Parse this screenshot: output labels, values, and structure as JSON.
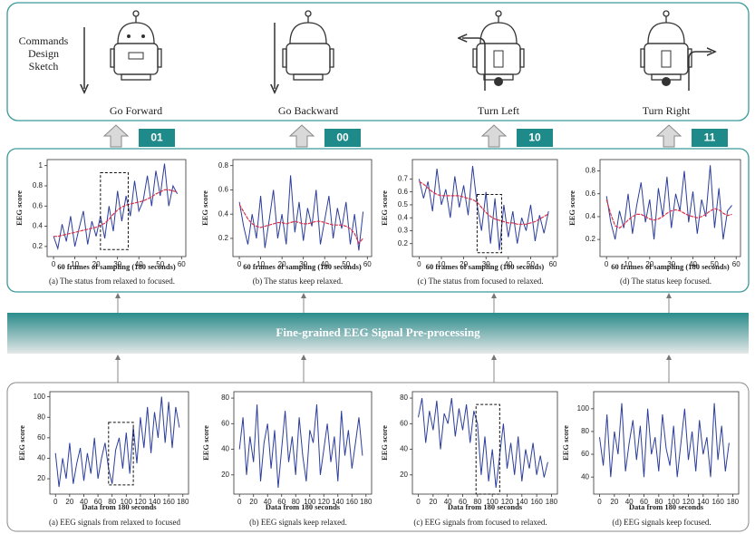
{
  "sketch": {
    "title_lines": [
      "Commands",
      "Design",
      "Sketch"
    ],
    "commands": [
      {
        "label": "Go Forward",
        "code": "01"
      },
      {
        "label": "Go Backward",
        "code": "00"
      },
      {
        "label": "Turn Left",
        "code": "10"
      },
      {
        "label": "Turn Right",
        "code": "11"
      }
    ]
  },
  "processing_label": "Fine-grained EEG Signal Pre-processing",
  "chart_data": [
    {
      "type": "line",
      "caption": "(a) The status from relaxed to focused.",
      "xlabel": "60 frames of sampling (180 seconds)",
      "ylabel": "EEG score",
      "x": [
        0,
        2,
        4,
        6,
        8,
        10,
        12,
        14,
        16,
        18,
        20,
        22,
        24,
        26,
        28,
        30,
        32,
        34,
        36,
        38,
        40,
        42,
        44,
        46,
        48,
        50,
        52,
        54,
        56,
        58
      ],
      "series": [
        {
          "color": "#2c3e9c",
          "values": [
            0.3,
            0.18,
            0.42,
            0.25,
            0.5,
            0.2,
            0.38,
            0.55,
            0.22,
            0.45,
            0.3,
            0.5,
            0.28,
            0.6,
            0.35,
            0.75,
            0.45,
            0.7,
            0.5,
            0.85,
            0.55,
            0.65,
            0.9,
            0.6,
            0.95,
            0.7,
            1.02,
            0.6,
            0.8,
            0.72
          ]
        },
        {
          "color": "#d8324a",
          "values": [
            0.3,
            0.3,
            0.31,
            0.32,
            0.33,
            0.34,
            0.35,
            0.36,
            0.37,
            0.38,
            0.39,
            0.41,
            0.43,
            0.47,
            0.52,
            0.56,
            0.59,
            0.61,
            0.62,
            0.63,
            0.64,
            0.65,
            0.67,
            0.69,
            0.72,
            0.74,
            0.76,
            0.76,
            0.75,
            0.74
          ]
        }
      ],
      "xlim": [
        -3,
        62
      ],
      "ylim": [
        0.1,
        1.06
      ],
      "xticks": [
        0,
        10,
        20,
        30,
        40,
        50,
        60
      ],
      "yticks": [
        0.2,
        0.4,
        0.6,
        0.8,
        1
      ],
      "highlight": {
        "x": [
          22,
          35
        ],
        "y": [
          0.17,
          0.93
        ]
      }
    },
    {
      "type": "line",
      "caption": "(b) The status keep relaxed.",
      "xlabel": "60 frames of sampling (180 seconds)",
      "ylabel": "EEG score",
      "x": [
        0,
        2,
        4,
        6,
        8,
        10,
        12,
        14,
        16,
        18,
        20,
        22,
        24,
        26,
        28,
        30,
        32,
        34,
        36,
        38,
        40,
        42,
        44,
        46,
        48,
        50,
        52,
        54,
        56,
        58
      ],
      "series": [
        {
          "color": "#2c3e9c",
          "values": [
            0.5,
            0.3,
            0.15,
            0.4,
            0.2,
            0.55,
            0.12,
            0.35,
            0.6,
            0.2,
            0.4,
            0.15,
            0.72,
            0.25,
            0.5,
            0.18,
            0.45,
            0.3,
            0.6,
            0.15,
            0.35,
            0.55,
            0.2,
            0.45,
            0.28,
            0.5,
            0.15,
            0.4,
            0.1,
            0.42
          ]
        },
        {
          "color": "#d8324a",
          "values": [
            0.48,
            0.42,
            0.36,
            0.32,
            0.3,
            0.29,
            0.3,
            0.31,
            0.32,
            0.33,
            0.33,
            0.32,
            0.33,
            0.34,
            0.33,
            0.32,
            0.32,
            0.33,
            0.34,
            0.34,
            0.33,
            0.32,
            0.31,
            0.31,
            0.31,
            0.3,
            0.28,
            0.24,
            0.16,
            0.2
          ]
        }
      ],
      "xlim": [
        -3,
        62
      ],
      "ylim": [
        0.05,
        0.85
      ],
      "xticks": [
        0,
        10,
        20,
        30,
        40,
        50,
        60
      ],
      "yticks": [
        0.2,
        0.4,
        0.6,
        0.8
      ]
    },
    {
      "type": "line",
      "caption": "(c) The status from focused to relaxed.",
      "xlabel": "60 frames of sampling (180 seconds)",
      "ylabel": "EEG score",
      "x": [
        0,
        2,
        4,
        6,
        8,
        10,
        12,
        14,
        16,
        18,
        20,
        22,
        24,
        26,
        28,
        30,
        32,
        34,
        36,
        38,
        40,
        42,
        44,
        46,
        48,
        50,
        52,
        54,
        56,
        58
      ],
      "series": [
        {
          "color": "#2c3e9c",
          "values": [
            0.7,
            0.55,
            0.68,
            0.45,
            0.78,
            0.5,
            0.62,
            0.4,
            0.72,
            0.48,
            0.65,
            0.42,
            0.8,
            0.5,
            0.3,
            0.6,
            0.2,
            0.55,
            0.15,
            0.5,
            0.25,
            0.45,
            0.2,
            0.4,
            0.3,
            0.5,
            0.22,
            0.42,
            0.28,
            0.45
          ]
        },
        {
          "color": "#d8324a",
          "values": [
            0.68,
            0.66,
            0.63,
            0.6,
            0.58,
            0.57,
            0.57,
            0.57,
            0.57,
            0.57,
            0.56,
            0.55,
            0.54,
            0.52,
            0.48,
            0.44,
            0.41,
            0.39,
            0.38,
            0.37,
            0.36,
            0.36,
            0.35,
            0.35,
            0.35,
            0.36,
            0.37,
            0.39,
            0.41,
            0.43
          ]
        }
      ],
      "xlim": [
        -3,
        62
      ],
      "ylim": [
        0.1,
        0.85
      ],
      "xticks": [
        0,
        10,
        20,
        30,
        40,
        50,
        60
      ],
      "yticks": [
        0.2,
        0.3,
        0.4,
        0.5,
        0.6,
        0.7
      ],
      "highlight": {
        "x": [
          26,
          37
        ],
        "y": [
          0.13,
          0.58
        ]
      }
    },
    {
      "type": "line",
      "caption": "(d) The status keep focused.",
      "xlabel": "60 frames of sampling (180 seconds)",
      "ylabel": "EEG score",
      "x": [
        0,
        2,
        4,
        6,
        8,
        10,
        12,
        14,
        16,
        18,
        20,
        22,
        24,
        26,
        28,
        30,
        32,
        34,
        36,
        38,
        40,
        42,
        44,
        46,
        48,
        50,
        52,
        54,
        56,
        58
      ],
      "series": [
        {
          "color": "#2c3e9c",
          "values": [
            0.58,
            0.35,
            0.2,
            0.45,
            0.3,
            0.6,
            0.25,
            0.5,
            0.7,
            0.35,
            0.55,
            0.2,
            0.65,
            0.4,
            0.75,
            0.3,
            0.6,
            0.45,
            0.8,
            0.35,
            0.62,
            0.25,
            0.55,
            0.4,
            0.85,
            0.3,
            0.65,
            0.2,
            0.45,
            0.5
          ]
        },
        {
          "color": "#d8324a",
          "values": [
            0.55,
            0.42,
            0.32,
            0.3,
            0.33,
            0.37,
            0.4,
            0.42,
            0.42,
            0.4,
            0.38,
            0.37,
            0.38,
            0.4,
            0.43,
            0.45,
            0.46,
            0.45,
            0.43,
            0.41,
            0.4,
            0.39,
            0.4,
            0.42,
            0.45,
            0.47,
            0.46,
            0.43,
            0.41,
            0.42
          ]
        }
      ],
      "xlim": [
        -3,
        62
      ],
      "ylim": [
        0.05,
        0.9
      ],
      "xticks": [
        0,
        10,
        20,
        30,
        40,
        50,
        60
      ],
      "yticks": [
        0.2,
        0.4,
        0.6,
        0.8
      ]
    },
    {
      "type": "line",
      "caption": "(a) EEG signals from relaxed to focused",
      "xlabel": "Data from 180 seconds",
      "ylabel": "EEG score",
      "x": [
        0,
        5,
        10,
        15,
        20,
        25,
        30,
        35,
        40,
        45,
        50,
        55,
        60,
        65,
        70,
        75,
        80,
        85,
        90,
        95,
        100,
        105,
        110,
        115,
        120,
        125,
        130,
        135,
        140,
        145,
        150,
        155,
        160,
        165,
        170,
        175
      ],
      "series": [
        {
          "color": "#2c3e9c",
          "values": [
            45,
            12,
            40,
            20,
            55,
            15,
            35,
            50,
            18,
            45,
            25,
            60,
            20,
            40,
            55,
            30,
            15,
            48,
            60,
            30,
            65,
            25,
            70,
            35,
            80,
            50,
            90,
            45,
            85,
            60,
            100,
            55,
            95,
            50,
            90,
            70
          ]
        }
      ],
      "xlim": [
        -8,
        188
      ],
      "ylim": [
        5,
        105
      ],
      "xticks": [
        0,
        20,
        40,
        60,
        80,
        100,
        120,
        140,
        160,
        180
      ],
      "yticks": [
        20,
        40,
        60,
        80,
        100
      ],
      "highlight": {
        "x": [
          75,
          110
        ],
        "y": [
          14,
          75
        ]
      }
    },
    {
      "type": "line",
      "caption": "(b) EEG signals keep relaxed.",
      "xlabel": "Data from 180 seconds",
      "ylabel": "EEG score",
      "x": [
        0,
        5,
        10,
        15,
        20,
        25,
        30,
        35,
        40,
        45,
        50,
        55,
        60,
        65,
        70,
        75,
        80,
        85,
        90,
        95,
        100,
        105,
        110,
        115,
        120,
        125,
        130,
        135,
        140,
        145,
        150,
        155,
        160,
        165,
        170,
        175
      ],
      "series": [
        {
          "color": "#2c3e9c",
          "values": [
            40,
            65,
            20,
            50,
            30,
            75,
            15,
            45,
            60,
            25,
            55,
            10,
            40,
            70,
            30,
            50,
            20,
            65,
            35,
            15,
            55,
            45,
            75,
            20,
            40,
            60,
            30,
            50,
            15,
            70,
            35,
            55,
            25,
            45,
            65,
            35
          ]
        }
      ],
      "xlim": [
        -8,
        188
      ],
      "ylim": [
        5,
        85
      ],
      "xticks": [
        0,
        20,
        40,
        60,
        80,
        100,
        120,
        140,
        160,
        180
      ],
      "yticks": [
        20,
        40,
        60,
        80
      ]
    },
    {
      "type": "line",
      "caption": "(c) EEG signals from focused to relaxed.",
      "xlabel": "Data from 180 seconds",
      "ylabel": "EEG score",
      "x": [
        0,
        5,
        10,
        15,
        20,
        25,
        30,
        35,
        40,
        45,
        50,
        55,
        60,
        65,
        70,
        75,
        80,
        85,
        90,
        95,
        100,
        105,
        110,
        115,
        120,
        125,
        130,
        135,
        140,
        145,
        150,
        155,
        160,
        165,
        170,
        175
      ],
      "series": [
        {
          "color": "#2c3e9c",
          "values": [
            65,
            80,
            45,
            70,
            55,
            78,
            40,
            68,
            60,
            80,
            50,
            72,
            55,
            75,
            45,
            70,
            60,
            20,
            50,
            15,
            40,
            10,
            35,
            60,
            25,
            45,
            20,
            50,
            15,
            40,
            25,
            45,
            20,
            35,
            18,
            30
          ]
        }
      ],
      "xlim": [
        -8,
        188
      ],
      "ylim": [
        5,
        85
      ],
      "xticks": [
        0,
        20,
        40,
        60,
        80,
        100,
        120,
        140,
        160,
        180
      ],
      "yticks": [
        20,
        40,
        60,
        80
      ],
      "highlight": {
        "x": [
          78,
          110
        ],
        "y": [
          5,
          75
        ]
      }
    },
    {
      "type": "line",
      "caption": "(d) EEG signals keep focused.",
      "xlabel": "Data from 180 seconds",
      "ylabel": "EEG score",
      "x": [
        0,
        5,
        10,
        15,
        20,
        25,
        30,
        35,
        40,
        45,
        50,
        55,
        60,
        65,
        70,
        75,
        80,
        85,
        90,
        95,
        100,
        105,
        110,
        115,
        120,
        125,
        130,
        135,
        140,
        145,
        150,
        155,
        160,
        165,
        170,
        175
      ],
      "series": [
        {
          "color": "#2c3e9c",
          "values": [
            75,
            50,
            95,
            40,
            80,
            60,
            105,
            45,
            70,
            90,
            55,
            85,
            40,
            100,
            60,
            75,
            45,
            95,
            65,
            50,
            85,
            40,
            70,
            100,
            55,
            80,
            45,
            90,
            60,
            75,
            40,
            105,
            55,
            85,
            45,
            70
          ]
        }
      ],
      "xlim": [
        -8,
        188
      ],
      "ylim": [
        25,
        115
      ],
      "xticks": [
        0,
        20,
        40,
        60,
        80,
        100,
        120,
        140,
        160,
        180
      ],
      "yticks": [
        40,
        60,
        80,
        100
      ]
    }
  ]
}
